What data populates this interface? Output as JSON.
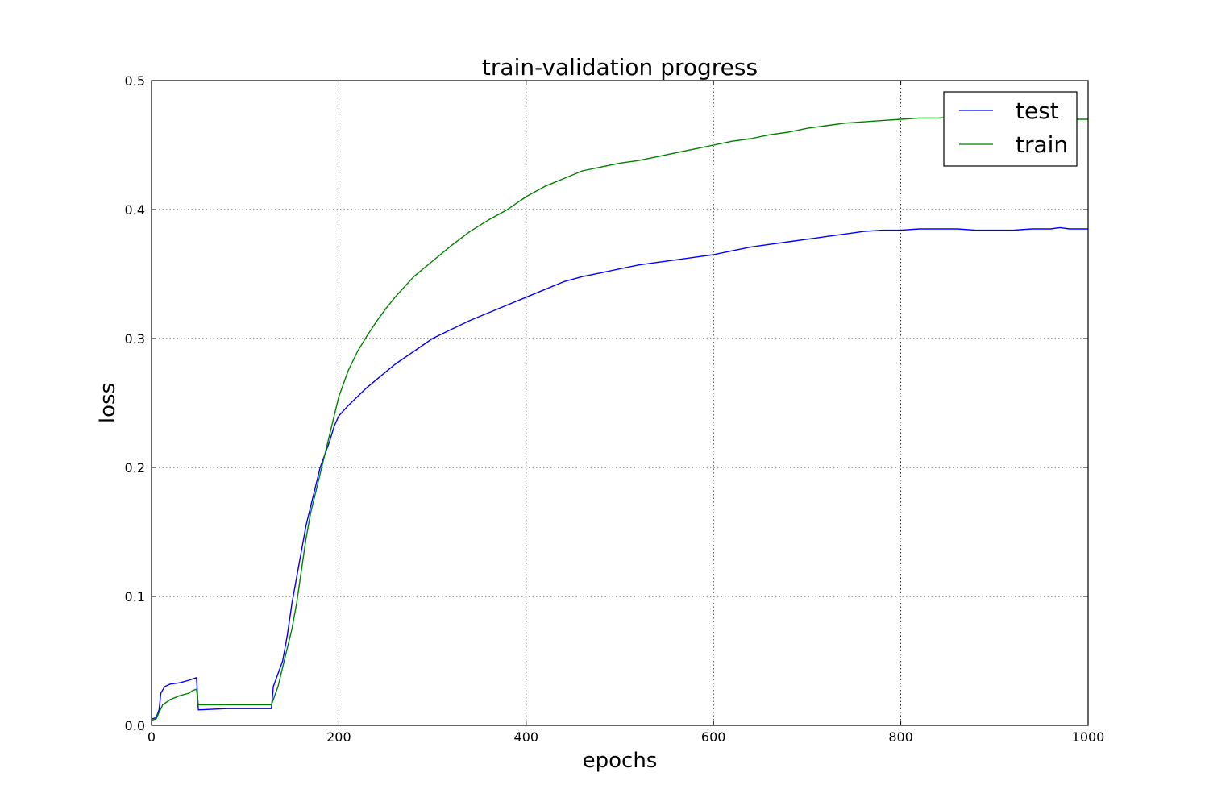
{
  "chart_data": {
    "type": "line",
    "title": "train-validation progress",
    "xlabel": "epochs",
    "ylabel": "loss",
    "xlim": [
      0,
      1000
    ],
    "ylim": [
      0,
      0.5
    ],
    "x_ticks": [
      0,
      200,
      400,
      600,
      800,
      1000
    ],
    "x_tick_labels": [
      "0",
      "200",
      "400",
      "600",
      "800",
      "1000"
    ],
    "y_ticks": [
      0.0,
      0.1,
      0.2,
      0.3,
      0.4,
      0.5
    ],
    "y_tick_labels": [
      "0.0",
      "0.1",
      "0.2",
      "0.3",
      "0.4",
      "0.5"
    ],
    "grid": true,
    "grid_style": "dotted",
    "legend_position": "top-right",
    "series": [
      {
        "name": "test",
        "color": "#0000ff",
        "x": [
          0,
          5,
          8,
          10,
          14,
          20,
          30,
          40,
          44,
          48,
          50,
          80,
          110,
          128,
          130,
          135,
          140,
          145,
          150,
          155,
          160,
          165,
          170,
          175,
          180,
          185,
          190,
          195,
          200,
          210,
          220,
          230,
          240,
          250,
          260,
          270,
          280,
          300,
          320,
          340,
          360,
          380,
          400,
          420,
          440,
          460,
          480,
          500,
          520,
          540,
          560,
          580,
          600,
          620,
          640,
          660,
          680,
          700,
          720,
          740,
          760,
          780,
          800,
          820,
          840,
          860,
          880,
          900,
          920,
          940,
          960,
          970,
          980,
          990,
          1000
        ],
        "y": [
          0.005,
          0.006,
          0.012,
          0.025,
          0.03,
          0.032,
          0.033,
          0.035,
          0.036,
          0.037,
          0.012,
          0.013,
          0.013,
          0.013,
          0.03,
          0.04,
          0.05,
          0.07,
          0.095,
          0.115,
          0.135,
          0.155,
          0.17,
          0.185,
          0.2,
          0.21,
          0.22,
          0.232,
          0.24,
          0.248,
          0.255,
          0.262,
          0.268,
          0.274,
          0.28,
          0.285,
          0.29,
          0.3,
          0.307,
          0.314,
          0.32,
          0.326,
          0.332,
          0.338,
          0.344,
          0.348,
          0.351,
          0.354,
          0.357,
          0.359,
          0.361,
          0.363,
          0.365,
          0.368,
          0.371,
          0.373,
          0.375,
          0.377,
          0.379,
          0.381,
          0.383,
          0.384,
          0.384,
          0.385,
          0.385,
          0.385,
          0.384,
          0.384,
          0.384,
          0.385,
          0.385,
          0.386,
          0.385,
          0.385,
          0.385
        ]
      },
      {
        "name": "train",
        "color": "#008000",
        "x": [
          0,
          5,
          8,
          12,
          20,
          30,
          40,
          44,
          48,
          50,
          80,
          110,
          128,
          130,
          135,
          140,
          145,
          150,
          155,
          160,
          165,
          170,
          175,
          180,
          185,
          190,
          195,
          200,
          210,
          220,
          230,
          240,
          250,
          260,
          270,
          280,
          300,
          320,
          340,
          360,
          380,
          400,
          420,
          440,
          460,
          480,
          500,
          520,
          540,
          560,
          580,
          600,
          620,
          640,
          660,
          680,
          700,
          720,
          740,
          760,
          780,
          800,
          820,
          840,
          860,
          880,
          900,
          920,
          940,
          960,
          980,
          1000
        ],
        "y": [
          0.004,
          0.005,
          0.01,
          0.016,
          0.02,
          0.023,
          0.025,
          0.027,
          0.028,
          0.016,
          0.016,
          0.016,
          0.016,
          0.02,
          0.03,
          0.045,
          0.06,
          0.075,
          0.095,
          0.12,
          0.145,
          0.165,
          0.18,
          0.195,
          0.21,
          0.225,
          0.24,
          0.255,
          0.275,
          0.29,
          0.302,
          0.313,
          0.323,
          0.332,
          0.34,
          0.348,
          0.36,
          0.372,
          0.383,
          0.392,
          0.4,
          0.41,
          0.418,
          0.424,
          0.43,
          0.433,
          0.436,
          0.438,
          0.441,
          0.444,
          0.447,
          0.45,
          0.453,
          0.455,
          0.458,
          0.46,
          0.463,
          0.465,
          0.467,
          0.468,
          0.469,
          0.47,
          0.471,
          0.471,
          0.472,
          0.471,
          0.471,
          0.471,
          0.47,
          0.47,
          0.47,
          0.47
        ]
      }
    ]
  }
}
